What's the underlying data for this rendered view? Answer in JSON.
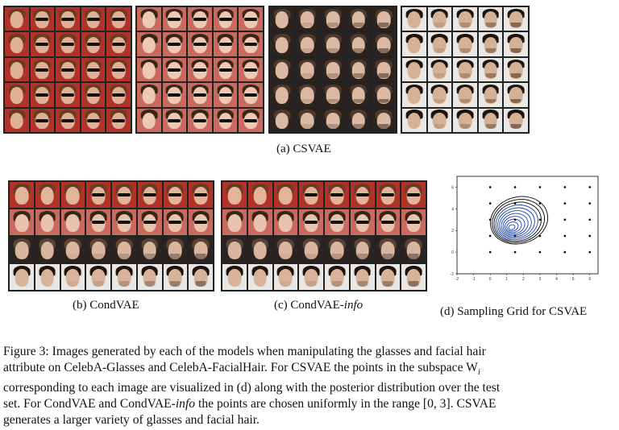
{
  "panels": {
    "a_caption": "(a) CSVAE",
    "b_caption": "(b) CondVAE",
    "c_caption_prefix": "(c) CondVAE-",
    "c_caption_italic": "info",
    "d_caption": "(d)   Sampling   Grid   for CSVAE"
  },
  "figure_caption": {
    "line1": "Figure 3: Images generated by each of the models when manipulating the glasses and facial hair",
    "line2": "attribute on CelebA-Glasses and CelebA-FacialHair. For CSVAE the points in the subspace W",
    "line2_sub": "i",
    "line3": "corresponding to each image are visualized in (d) along with the posterior distribution over the test",
    "line4a": "set. For CondVAE and CondVAE-",
    "line4_italic": "info",
    "line4b": " the points are chosen uniformly in the range [0, 3]. CSVAE",
    "line5": "generates a larger variety of glasses and facial hair."
  },
  "chart_data": {
    "type": "scatter",
    "title": "",
    "xlabel": "",
    "ylabel": "",
    "xlim": [
      -2,
      6.5
    ],
    "ylim": [
      -2,
      7
    ],
    "xticks": [
      "-2",
      "-1",
      "0",
      "1",
      "2",
      "3",
      "4",
      "5",
      "6"
    ],
    "yticks": [
      "-2",
      "0",
      "2",
      "4",
      "6"
    ],
    "grid_points": {
      "x": [
        0,
        1.5,
        3,
        4.5,
        6
      ],
      "y": [
        0,
        1.5,
        3,
        4.5,
        6
      ]
    },
    "contour_center": [
      1.3,
      2.3
    ],
    "contour_color": "#1a3fb0",
    "outer_contour_color": "#000000"
  },
  "colors": {
    "red_bg": "#b0332a",
    "pink_bg": "#c96a5e",
    "dark_bg": "#2a2320",
    "white_bg": "#e9e7e3"
  }
}
